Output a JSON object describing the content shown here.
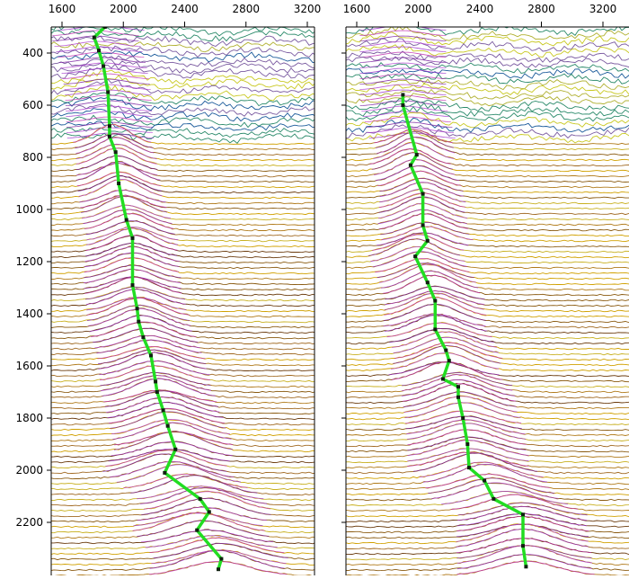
{
  "chart_data": [
    {
      "type": "line",
      "title": "",
      "xlabel": "",
      "ylabel": "",
      "x_ticks": [
        1600,
        2000,
        2400,
        2800,
        3200
      ],
      "y_ticks": [
        400,
        600,
        800,
        1000,
        1200,
        1400,
        1600,
        1800,
        2000,
        2200
      ],
      "xlim": [
        1530,
        3300
      ],
      "ylim": [
        290,
        2400
      ],
      "picks": [
        [
          1880,
          300
        ],
        [
          1810,
          340
        ],
        [
          1840,
          390
        ],
        [
          1870,
          450
        ],
        [
          1900,
          550
        ],
        [
          1910,
          680
        ],
        [
          1910,
          720
        ],
        [
          1950,
          780
        ],
        [
          1970,
          900
        ],
        [
          2020,
          1040
        ],
        [
          2060,
          1110
        ],
        [
          2060,
          1290
        ],
        [
          2090,
          1380
        ],
        [
          2100,
          1430
        ],
        [
          2130,
          1490
        ],
        [
          2180,
          1560
        ],
        [
          2210,
          1660
        ],
        [
          2220,
          1700
        ],
        [
          2260,
          1770
        ],
        [
          2290,
          1830
        ],
        [
          2340,
          1920
        ],
        [
          2270,
          2010
        ],
        [
          2500,
          2110
        ],
        [
          2560,
          2160
        ],
        [
          2480,
          2230
        ],
        [
          2640,
          2340
        ],
        [
          2620,
          2380
        ]
      ]
    },
    {
      "type": "line",
      "title": "",
      "xlabel": "",
      "ylabel": "",
      "x_ticks": [
        1600,
        2000,
        2400,
        2800,
        3200
      ],
      "y_ticks": [
        400,
        600,
        800,
        1000,
        1200,
        1400,
        1600,
        1800,
        2000,
        2200
      ],
      "xlim": [
        1530,
        3300
      ],
      "ylim": [
        290,
        2400
      ],
      "picks": [
        [
          1900,
          560
        ],
        [
          1900,
          600
        ],
        [
          1990,
          790
        ],
        [
          1950,
          830
        ],
        [
          2030,
          940
        ],
        [
          2030,
          1060
        ],
        [
          2060,
          1120
        ],
        [
          1980,
          1180
        ],
        [
          2060,
          1280
        ],
        [
          2110,
          1350
        ],
        [
          2110,
          1460
        ],
        [
          2180,
          1540
        ],
        [
          2200,
          1580
        ],
        [
          2160,
          1650
        ],
        [
          2260,
          1680
        ],
        [
          2260,
          1720
        ],
        [
          2290,
          1800
        ],
        [
          2320,
          1900
        ],
        [
          2330,
          1990
        ],
        [
          2430,
          2040
        ],
        [
          2490,
          2110
        ],
        [
          2680,
          2170
        ],
        [
          2680,
          2290
        ],
        [
          2700,
          2370
        ]
      ]
    }
  ],
  "colors": {
    "pick_line": "#22dd22",
    "pick_point": "#112211",
    "trace_palette": [
      "#b07a1a",
      "#8a5a10",
      "#c8b020",
      "#6a3a0c",
      "#a06820",
      "#d0a000"
    ],
    "shallow_palette": [
      "#c8c820",
      "#2a8a6a",
      "#1a5a9a",
      "#7a5aa0",
      "#b0b030"
    ],
    "peak_palette": [
      "#9a30c8",
      "#c030b0",
      "#7a20a0",
      "#b040d0"
    ]
  }
}
